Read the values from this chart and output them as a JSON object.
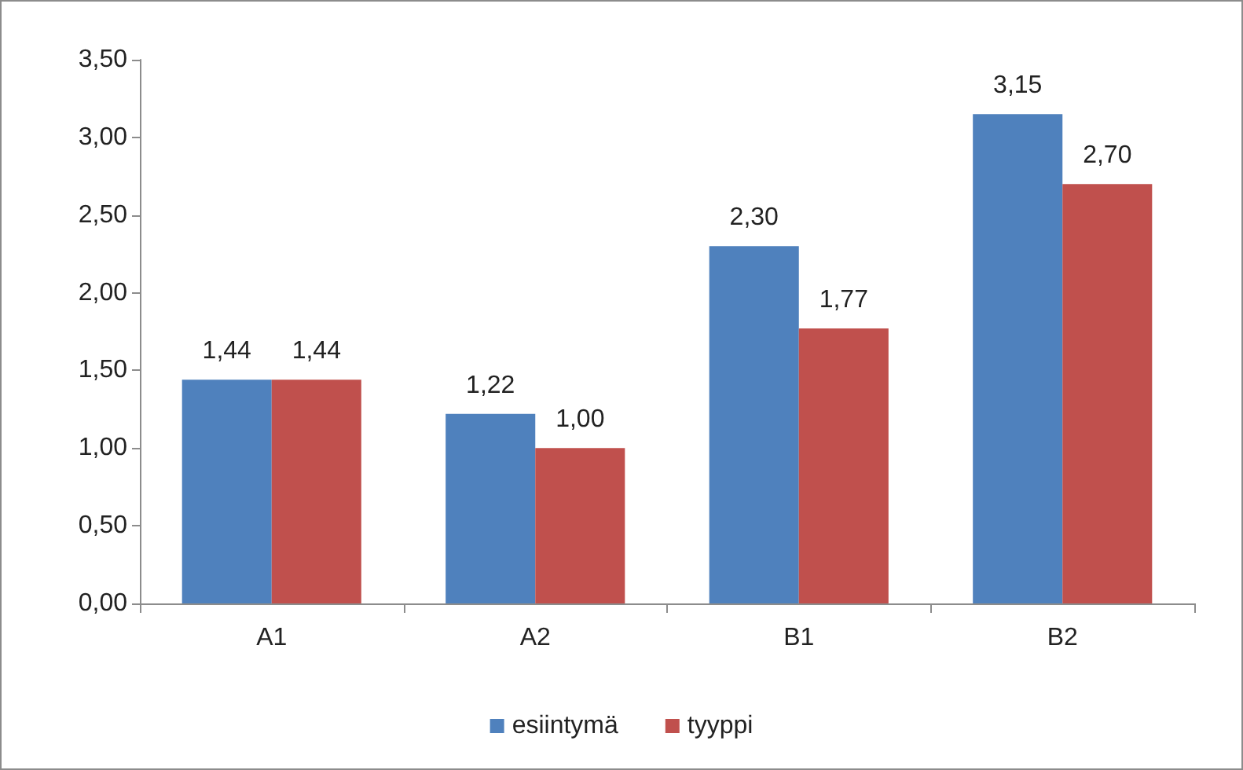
{
  "chart_data": {
    "type": "bar",
    "categories": [
      "A1",
      "A2",
      "B1",
      "B2"
    ],
    "series": [
      {
        "name": "esiintymä",
        "color": "#4f81bd",
        "values": [
          1.44,
          1.22,
          2.3,
          3.15
        ],
        "value_labels": [
          "1,44",
          "1,22",
          "2,30",
          "3,15"
        ]
      },
      {
        "name": "tyyppi",
        "color": "#c0504d",
        "values": [
          1.44,
          1.0,
          1.77,
          2.7
        ],
        "value_labels": [
          "1,44",
          "1,00",
          "1,77",
          "2,70"
        ]
      }
    ],
    "ylim": [
      0,
      3.5
    ],
    "yticks": [
      {
        "value": 0,
        "label": "0,00"
      },
      {
        "value": 0.5,
        "label": "0,50"
      },
      {
        "value": 1,
        "label": "1,00"
      },
      {
        "value": 1.5,
        "label": "1,50"
      },
      {
        "value": 2,
        "label": "2,00"
      },
      {
        "value": 2.5,
        "label": "2,50"
      },
      {
        "value": 3,
        "label": "3,00"
      },
      {
        "value": 3.5,
        "label": "3,50"
      }
    ],
    "grid": false,
    "legend": "bottom"
  }
}
